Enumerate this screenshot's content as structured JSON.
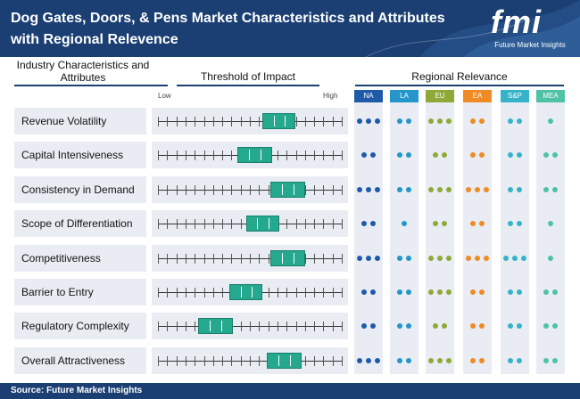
{
  "header": {
    "title": "Dog Gates, Doors, & Pens Market Characteristics and Attributes with Regional Relevence"
  },
  "logo": {
    "mark": "fmi",
    "subtitle": "Future Market Insights"
  },
  "columns": {
    "industry": "Industry Characteristics and Attributes",
    "threshold": "Threshold of Impact",
    "regional": "Regional Relevance"
  },
  "scale": {
    "low": "Low",
    "high": "High"
  },
  "chart_data": {
    "type": "table",
    "title": "Dog Gates, Doors, & Pens Market Characteristics and Attributes with Regional Relevence",
    "threshold_range": [
      0,
      1
    ],
    "regions": [
      {
        "code": "NA",
        "color": "#1f5aa8"
      },
      {
        "code": "LA",
        "color": "#2496c9"
      },
      {
        "code": "EU",
        "color": "#8fa83a"
      },
      {
        "code": "EA",
        "color": "#f08a24"
      },
      {
        "code": "S&P",
        "color": "#36b3c9"
      },
      {
        "code": "MEA",
        "color": "#4fc1a6"
      }
    ],
    "rows": [
      {
        "label": "Revenue Volatility",
        "impact_start": 0.57,
        "impact_end": 0.75,
        "relevance": [
          3,
          2,
          3,
          2,
          2,
          1
        ]
      },
      {
        "label": "Capital Intensiveness",
        "impact_start": 0.43,
        "impact_end": 0.62,
        "relevance": [
          2,
          2,
          2,
          2,
          2,
          2
        ]
      },
      {
        "label": "Consistency in Demand",
        "impact_start": 0.61,
        "impact_end": 0.8,
        "relevance": [
          3,
          2,
          3,
          3,
          2,
          2
        ]
      },
      {
        "label": "Scope of Differentiation",
        "impact_start": 0.48,
        "impact_end": 0.66,
        "relevance": [
          2,
          1,
          2,
          2,
          2,
          1
        ]
      },
      {
        "label": "Competitiveness",
        "impact_start": 0.61,
        "impact_end": 0.8,
        "relevance": [
          3,
          2,
          3,
          3,
          3,
          1
        ]
      },
      {
        "label": "Barrier to Entry",
        "impact_start": 0.39,
        "impact_end": 0.57,
        "relevance": [
          2,
          2,
          3,
          2,
          2,
          2
        ]
      },
      {
        "label": "Regulatory Complexity",
        "impact_start": 0.22,
        "impact_end": 0.41,
        "relevance": [
          2,
          2,
          2,
          2,
          2,
          2
        ]
      },
      {
        "label": "Overall Attractiveness",
        "impact_start": 0.59,
        "impact_end": 0.78,
        "relevance": [
          3,
          2,
          3,
          2,
          2,
          2
        ]
      }
    ]
  },
  "footer": {
    "source": "Source: Future Market Insights"
  }
}
